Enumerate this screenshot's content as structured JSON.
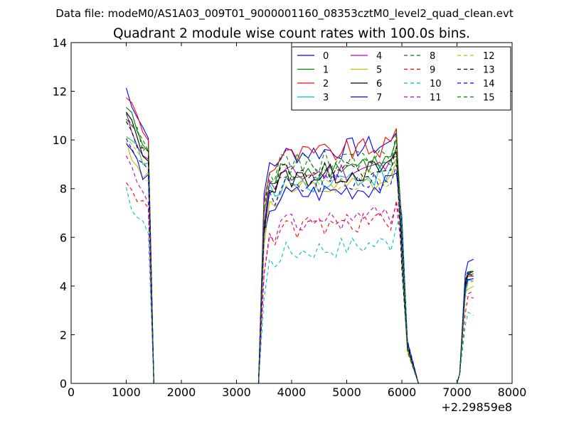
{
  "chart_data": {
    "type": "line",
    "suptitle": "Data file: modeM0/AS1A03_009T01_9000001160_08353cztM0_level2_quad_clean.evt",
    "title": "Quadrant 2 module wise count rates with 100.0s bins.",
    "xlabel": "",
    "ylabel": "",
    "x_offset_label": "+2.29859e8",
    "xlim": [
      0,
      8000
    ],
    "ylim": [
      0,
      14
    ],
    "xticks": [
      0,
      1000,
      2000,
      3000,
      4000,
      5000,
      6000,
      7000,
      8000
    ],
    "yticks": [
      0,
      2,
      4,
      6,
      8,
      10,
      12,
      14
    ],
    "x_tick_labels": [
      "0",
      "1000",
      "2000",
      "3000",
      "4000",
      "5000",
      "6000",
      "7000",
      "8000"
    ],
    "y_tick_labels": [
      "0",
      "2",
      "4",
      "6",
      "8",
      "10",
      "12",
      "14"
    ],
    "legend_position": "top-right",
    "legend_columns": 4,
    "segments": [
      {
        "start": 1000,
        "n": 5,
        "ramp_down": 1500
      },
      {
        "start": 3400,
        "n": 28
      },
      {
        "start": 7000,
        "n": 4
      }
    ],
    "series": [
      {
        "name": "0",
        "color": "#0000ff",
        "dash": "solid",
        "level": 9.3,
        "peak1": 12.1,
        "final": 5.1
      },
      {
        "name": "1",
        "color": "#008000",
        "dash": "solid",
        "level": 8.6,
        "peak1": 11.4,
        "final": 4.5
      },
      {
        "name": "2",
        "color": "#ff0000",
        "dash": "solid",
        "level": 9.2,
        "peak1": 11.9,
        "final": 4.4
      },
      {
        "name": "3",
        "color": "#00bfbf",
        "dash": "solid",
        "level": 8.1,
        "peak1": 10.4,
        "final": 4.2
      },
      {
        "name": "4",
        "color": "#bf00bf",
        "dash": "solid",
        "level": 8.4,
        "peak1": 10.9,
        "final": 4.4
      },
      {
        "name": "5",
        "color": "#bfbf00",
        "dash": "solid",
        "level": 7.7,
        "peak1": 9.8,
        "final": 4.0
      },
      {
        "name": "6",
        "color": "#000000",
        "dash": "solid",
        "level": 8.3,
        "peak1": 11.1,
        "final": 4.6
      },
      {
        "name": "7",
        "color": "#0000ff",
        "dash": "solid",
        "level": 7.6,
        "peak1": 9.9,
        "final": 4.3
      },
      {
        "name": "8",
        "color": "#008000",
        "dash": "dashed",
        "level": 8.9,
        "peak1": 11.0,
        "final": 4.6
      },
      {
        "name": "9",
        "color": "#ff0000",
        "dash": "dashed",
        "level": 6.2,
        "peak1": 8.5,
        "final": 3.5
      },
      {
        "name": "10",
        "color": "#00bfbf",
        "dash": "dashed",
        "level": 5.3,
        "peak1": 7.8,
        "final": 2.8
      },
      {
        "name": "11",
        "color": "#bf00bf",
        "dash": "dashed",
        "level": 6.4,
        "peak1": 9.2,
        "final": 3.8
      },
      {
        "name": "12",
        "color": "#bfbf00",
        "dash": "dashed",
        "level": 8.0,
        "peak1": 10.1,
        "final": 4.2
      },
      {
        "name": "13",
        "color": "#000000",
        "dash": "dashed",
        "level": 8.5,
        "peak1": 10.8,
        "final": 4.6
      },
      {
        "name": "14",
        "color": "#0000ff",
        "dash": "dashed",
        "level": 7.9,
        "peak1": 10.2,
        "final": 4.5
      },
      {
        "name": "15",
        "color": "#008000",
        "dash": "dashed",
        "level": 8.8,
        "peak1": 11.3,
        "final": 4.4
      }
    ]
  }
}
